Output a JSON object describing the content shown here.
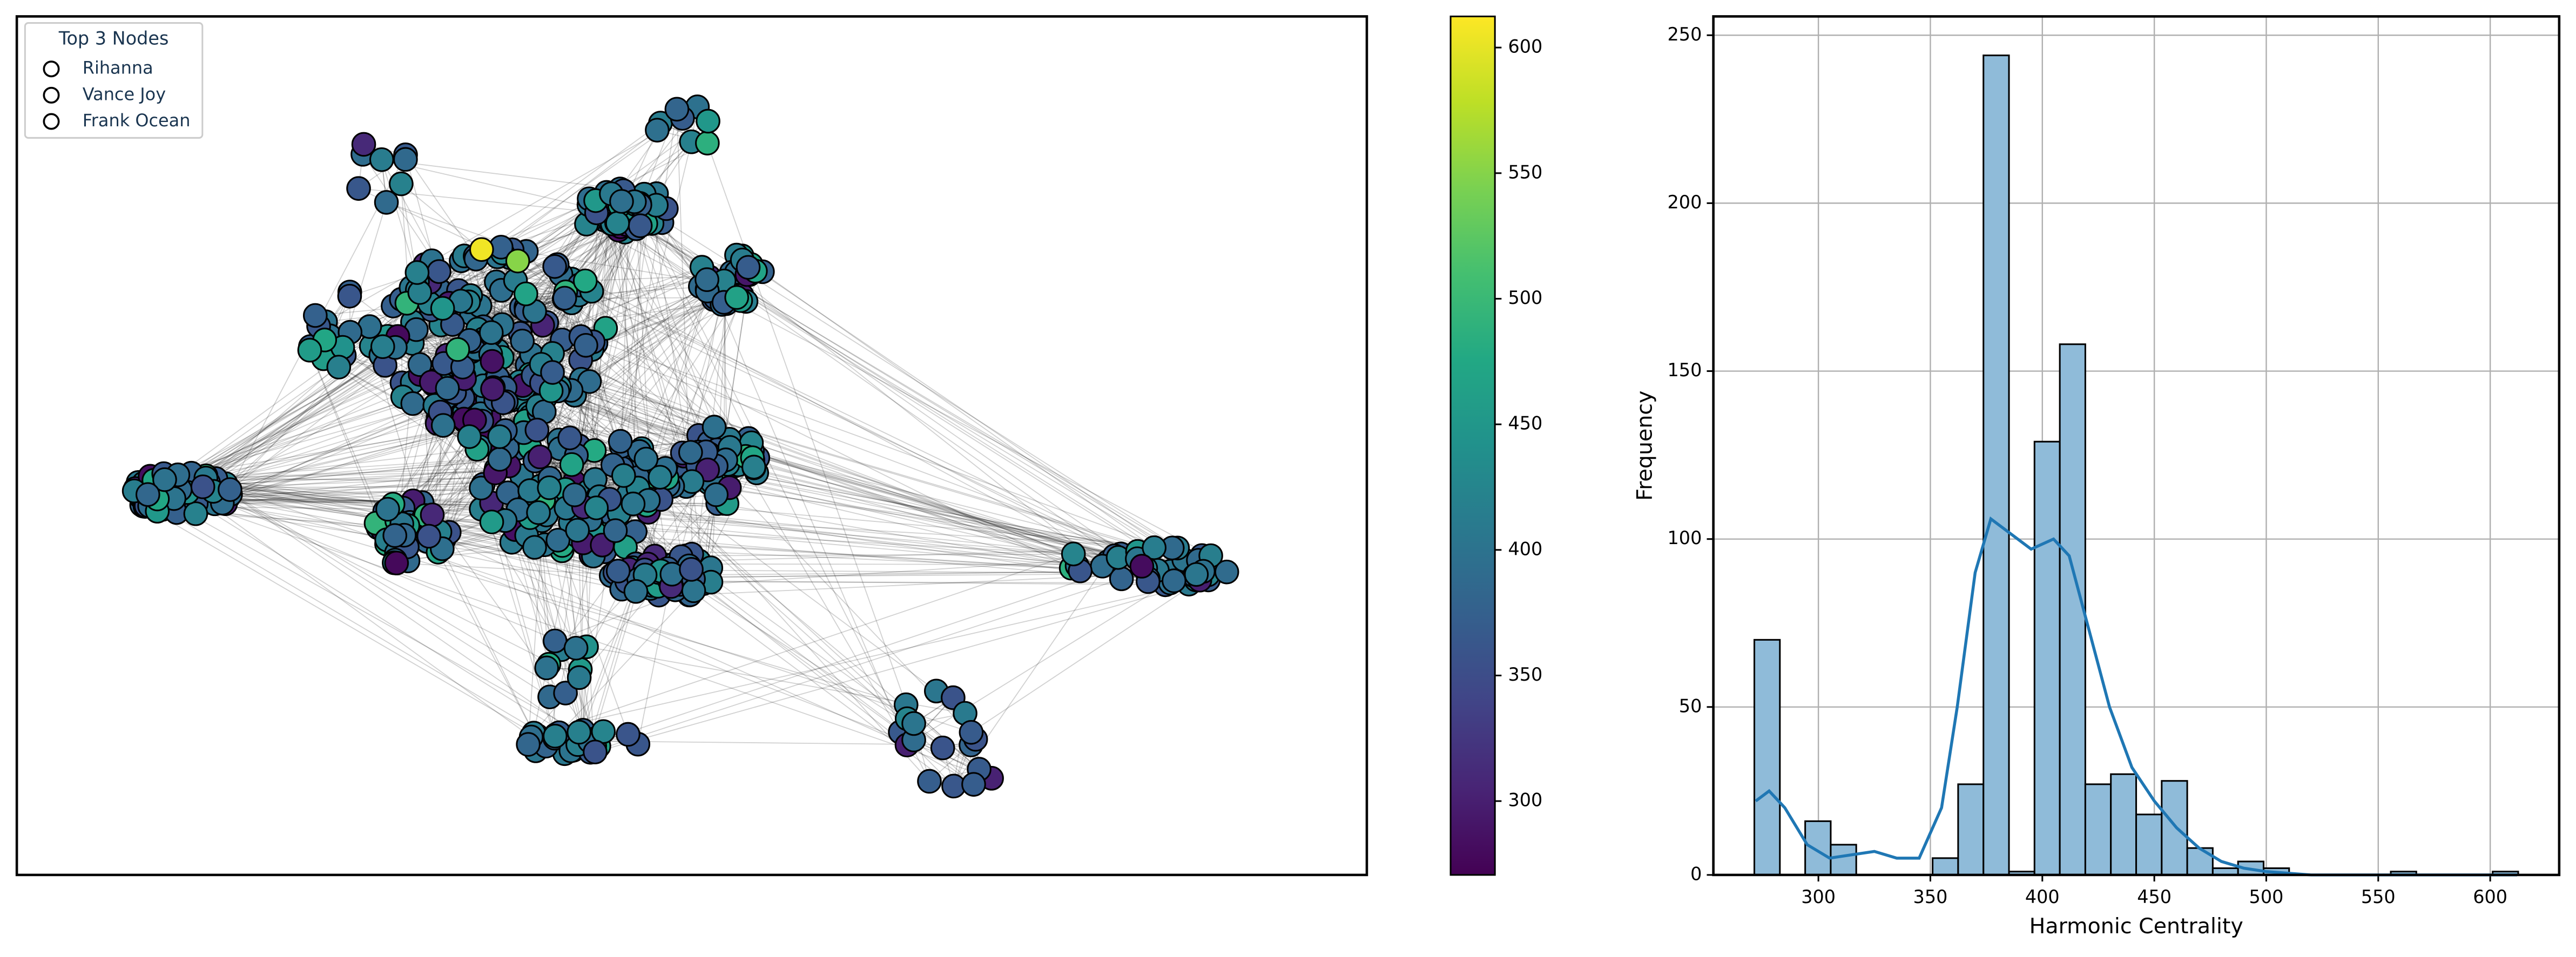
{
  "chart_data": [
    {
      "type": "network",
      "legend_title": "Top 3 Nodes",
      "legend": [
        "Rihanna",
        "Vance Joy",
        "Frank Ocean"
      ],
      "legend_loc": "upper left",
      "colormap": "viridis",
      "clim": [
        270.6,
        612.4
      ],
      "colorbar_ticks": [
        300,
        350,
        400,
        450,
        500,
        550,
        600
      ]
    },
    {
      "type": "histogram",
      "bins": [
        271.4,
        282.8,
        294.1,
        305.5,
        316.9,
        328.3,
        339.6,
        351.0,
        362.4,
        373.7,
        385.1,
        396.5,
        407.8,
        419.2,
        430.6,
        441.9,
        453.3,
        464.7,
        476.1,
        487.4,
        498.8,
        510.2,
        521.5,
        532.9,
        544.3,
        555.6,
        567.0,
        578.4,
        589.8,
        601.1,
        612.5
      ],
      "counts": [
        70,
        0,
        16,
        9,
        0,
        0,
        0,
        5,
        27,
        244,
        1,
        129,
        158,
        27,
        30,
        18,
        28,
        8,
        2,
        4,
        2,
        0,
        0,
        0,
        0,
        1,
        0,
        0,
        0,
        1
      ],
      "color": "#8fbbd9",
      "edge_color": "#000000",
      "kde": {
        "x": [
          272,
          278,
          285,
          295,
          305,
          315,
          325,
          335,
          345,
          355,
          362,
          370,
          377,
          385,
          395,
          405,
          412,
          420,
          430,
          440,
          450,
          460,
          470,
          480,
          490,
          500,
          520,
          560,
          612
        ],
        "y": [
          22,
          25,
          20,
          9,
          5,
          6,
          7,
          5,
          5,
          20,
          50,
          90,
          106,
          102,
          97,
          100,
          95,
          75,
          50,
          32,
          22,
          14,
          8,
          4,
          2,
          1,
          0,
          0,
          0
        ],
        "color": "#1f77b4"
      },
      "xlabel": "Harmonic Centrality",
      "ylabel": "Frequency",
      "xlim": [
        253.1,
        630.8
      ],
      "ylim": [
        0,
        255.6
      ],
      "xticks": [
        300,
        350,
        400,
        450,
        500,
        550,
        600
      ],
      "yticks": [
        0,
        50,
        100,
        150,
        200,
        250
      ],
      "grid": true
    }
  ]
}
